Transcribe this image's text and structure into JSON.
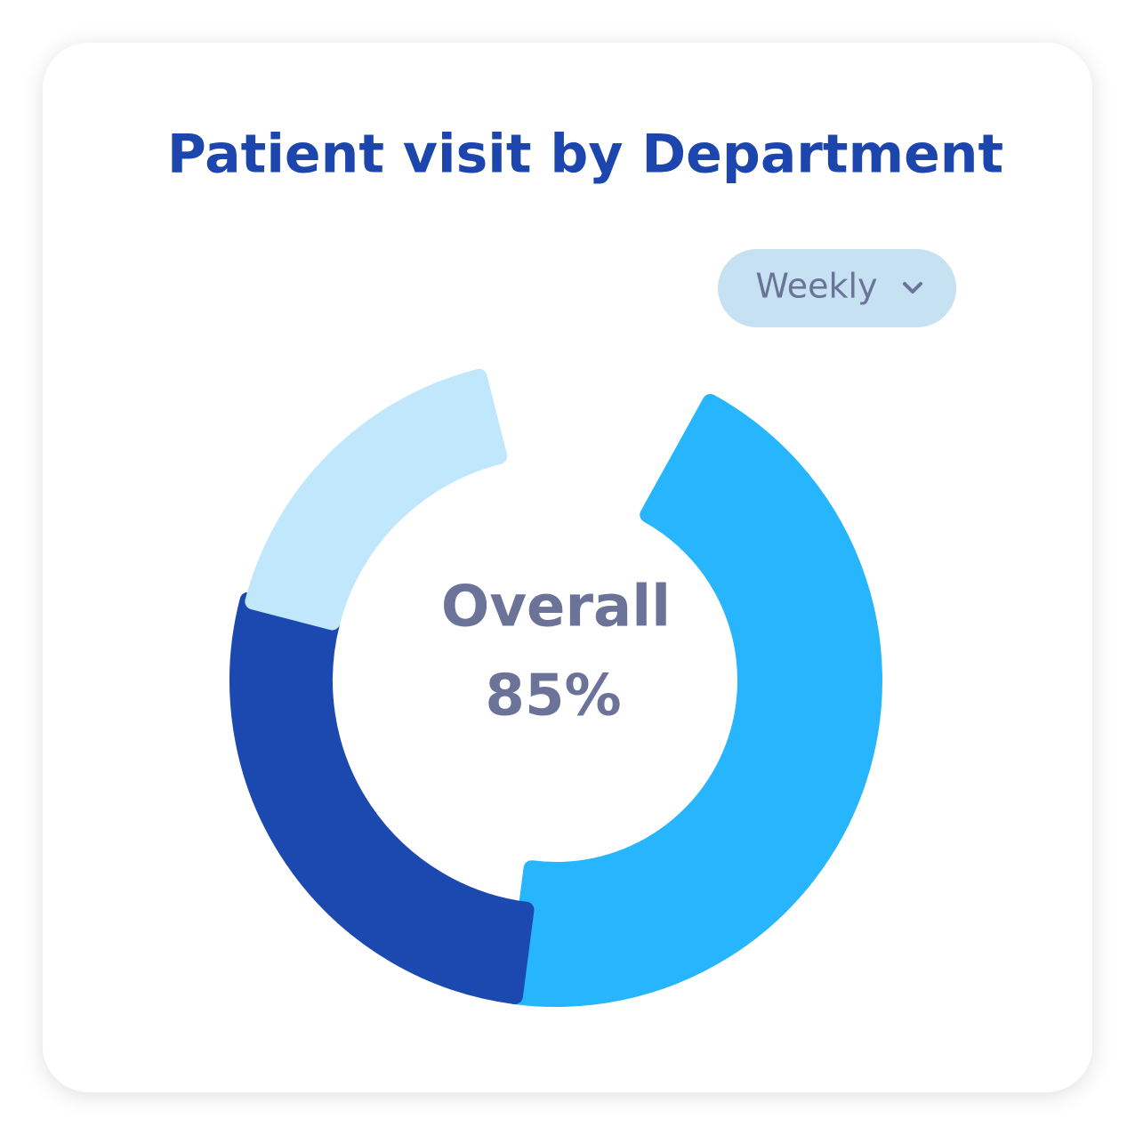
{
  "chart_data": {
    "type": "donut",
    "title": "Patient visit by Department",
    "dropdown": "Weekly",
    "center_label": "Overall",
    "center_value": "85%",
    "values": [
      44,
      27,
      17
    ],
    "colors": [
      "#27b5fd",
      "#1c49b0",
      "#c0e7fc"
    ]
  }
}
